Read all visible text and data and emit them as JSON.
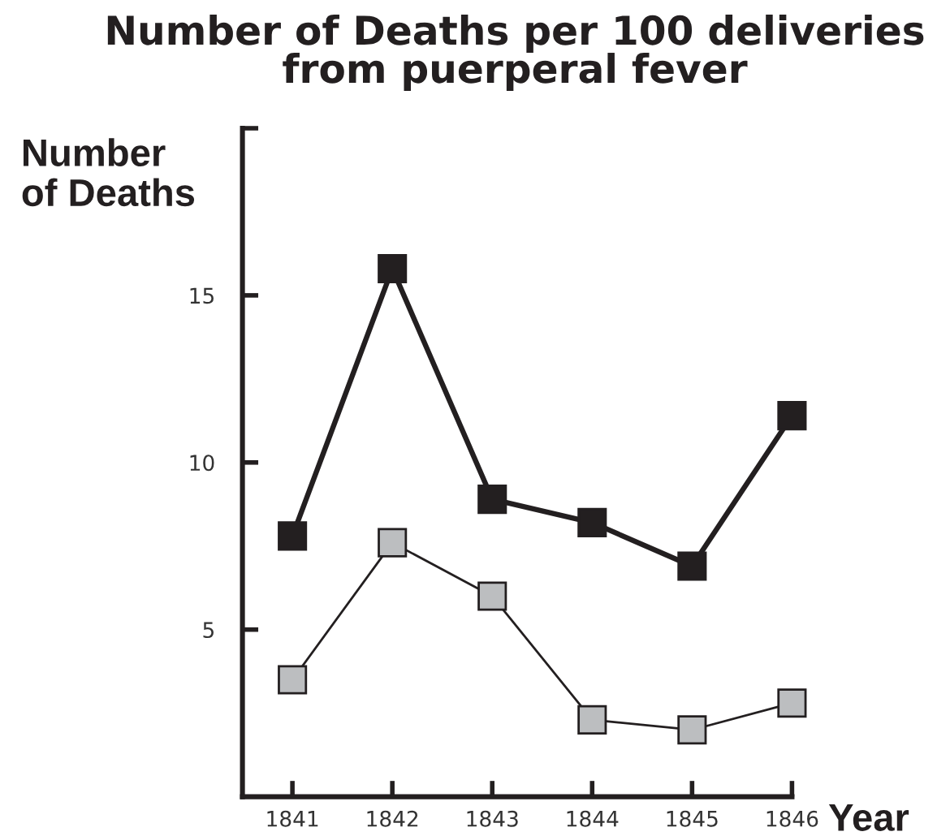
{
  "chart_data": {
    "type": "line",
    "title": "Number of Deaths per 100 deliveries\nfrom puerperal fever",
    "xlabel": "Year",
    "ylabel": "Number\nof Deaths",
    "x": [
      1841,
      1842,
      1843,
      1844,
      1845,
      1846
    ],
    "xlim": [
      1840.5,
      1846
    ],
    "xticks": [
      1841,
      1842,
      1843,
      1844,
      1845,
      1846
    ],
    "ylim": [
      0,
      20
    ],
    "yticks": [
      5,
      10,
      15,
      {
        "value": 20,
        "label": null
      }
    ],
    "marker": "square",
    "line_style": "solid",
    "grid": false,
    "series": [
      {
        "color": "#231f20",
        "values": [
          7.8,
          15.8,
          8.9,
          8.2,
          6.9,
          11.4
        ]
      },
      {
        "color": "#bcbec0",
        "values": [
          3.5,
          7.6,
          6.0,
          2.3,
          2.0,
          2.8
        ]
      }
    ]
  }
}
